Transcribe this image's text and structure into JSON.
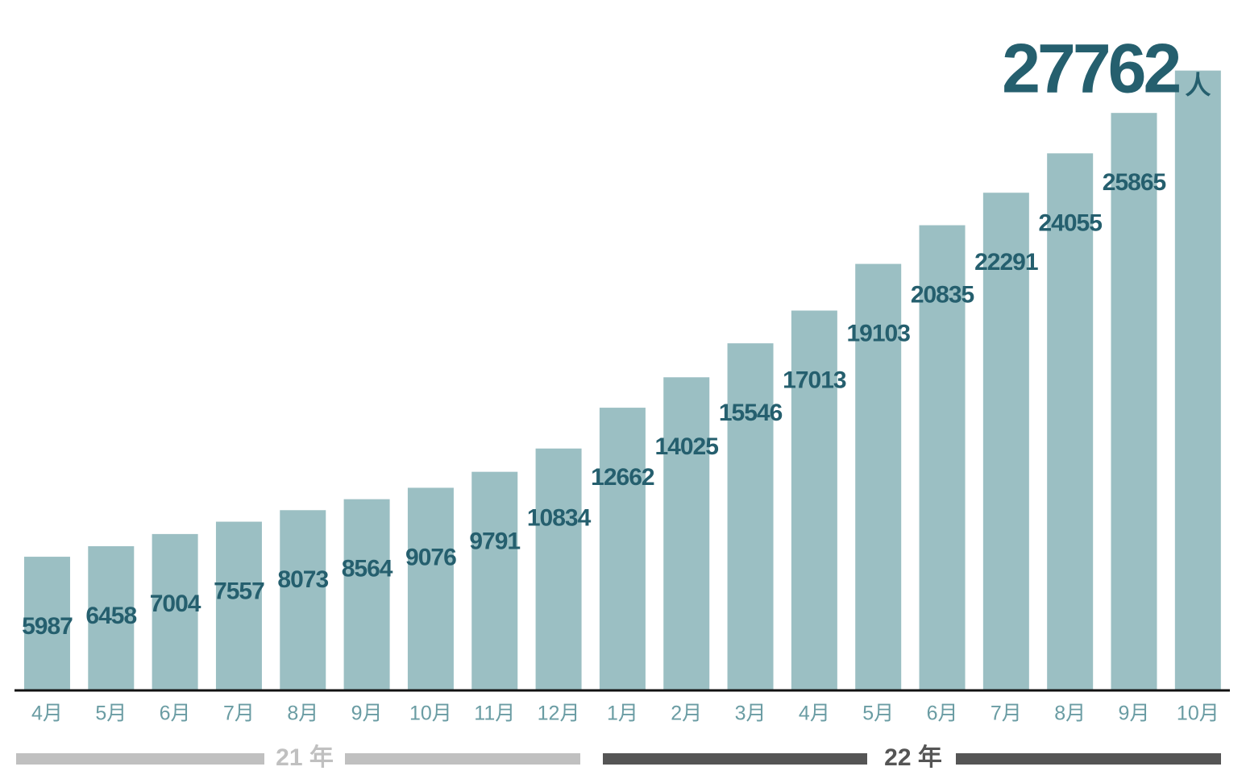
{
  "chart_data": {
    "type": "bar",
    "categories": [
      "4月",
      "5月",
      "6月",
      "7月",
      "8月",
      "9月",
      "10月",
      "11月",
      "12月",
      "1月",
      "2月",
      "3月",
      "4月",
      "5月",
      "6月",
      "7月",
      "8月",
      "9月",
      "10月"
    ],
    "values": [
      5987,
      6458,
      7004,
      7557,
      8073,
      8564,
      9076,
      9791,
      10834,
      12662,
      14025,
      15546,
      17013,
      19103,
      20835,
      22291,
      24055,
      25865,
      27762
    ],
    "color": "#9bbfc3",
    "label_color": "#255f6e",
    "unit": "人",
    "ylim": [
      0,
      28000
    ],
    "groups": [
      {
        "label": "21 年",
        "color": "#c0c0c0"
      },
      {
        "label": "22 年",
        "color": "#555555"
      }
    ]
  }
}
